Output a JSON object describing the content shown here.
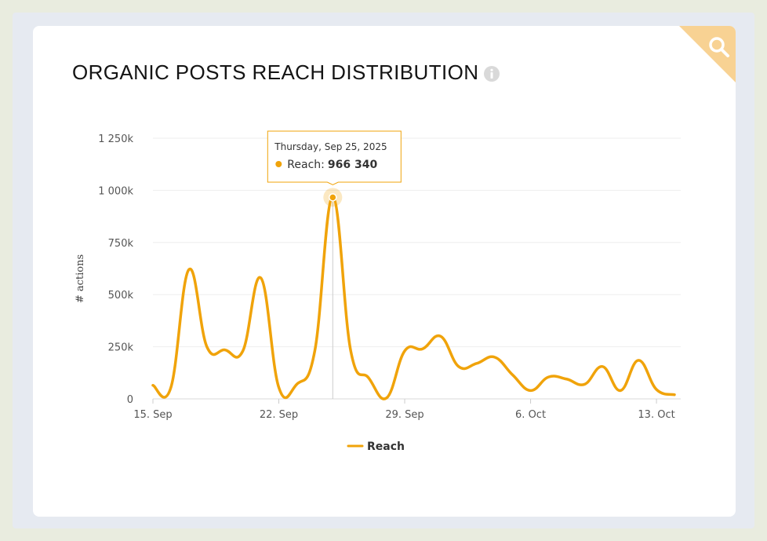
{
  "page": {
    "title": "ORGANIC POSTS REACH DISTRIBUTION",
    "info_icon": "info-icon",
    "search_icon": "search-icon"
  },
  "tooltip": {
    "date": "Thursday, Sep 25, 2025",
    "series_label": "Reach:",
    "value_text": "966 340",
    "x": 10,
    "value": 966340
  },
  "colors": {
    "series": "#f0a30a",
    "grid": "#eeeeee",
    "corner": "#f8d293"
  },
  "chart_data": {
    "type": "line",
    "title": "ORGANIC POSTS REACH DISTRIBUTION",
    "xlabel": "",
    "ylabel": "# actions",
    "start_date": "2025-09-15",
    "xlim": [
      0,
      29
    ],
    "ylim": [
      0,
      1250000
    ],
    "x_ticks": [
      {
        "x": 0,
        "label": "15. Sep"
      },
      {
        "x": 7,
        "label": "22. Sep"
      },
      {
        "x": 14,
        "label": "29. Sep"
      },
      {
        "x": 21,
        "label": "6. Oct"
      },
      {
        "x": 28,
        "label": "13. Oct"
      }
    ],
    "y_ticks": [
      {
        "value": 0,
        "label": "0"
      },
      {
        "value": 250000,
        "label": "250k"
      },
      {
        "value": 500000,
        "label": "500k"
      },
      {
        "value": 750000,
        "label": "750k"
      },
      {
        "value": 1000000,
        "label": "1 000k"
      },
      {
        "value": 1250000,
        "label": "1 250k"
      }
    ],
    "legend": "bottom-center",
    "series": [
      {
        "name": "Reach",
        "x": [
          0,
          1,
          2,
          3,
          4,
          5,
          6,
          7,
          8,
          9,
          10,
          11,
          12,
          13,
          14,
          15,
          16,
          17,
          18,
          19,
          20,
          21,
          22,
          23,
          24,
          25,
          26,
          27,
          28,
          29
        ],
        "values": [
          65000,
          55000,
          620000,
          250000,
          235000,
          230000,
          580000,
          55000,
          70000,
          230000,
          966340,
          230000,
          100000,
          5000,
          230000,
          240000,
          300000,
          155000,
          170000,
          200000,
          115000,
          40000,
          105000,
          95000,
          70000,
          155000,
          40000,
          185000,
          45000,
          20000
        ]
      }
    ]
  }
}
